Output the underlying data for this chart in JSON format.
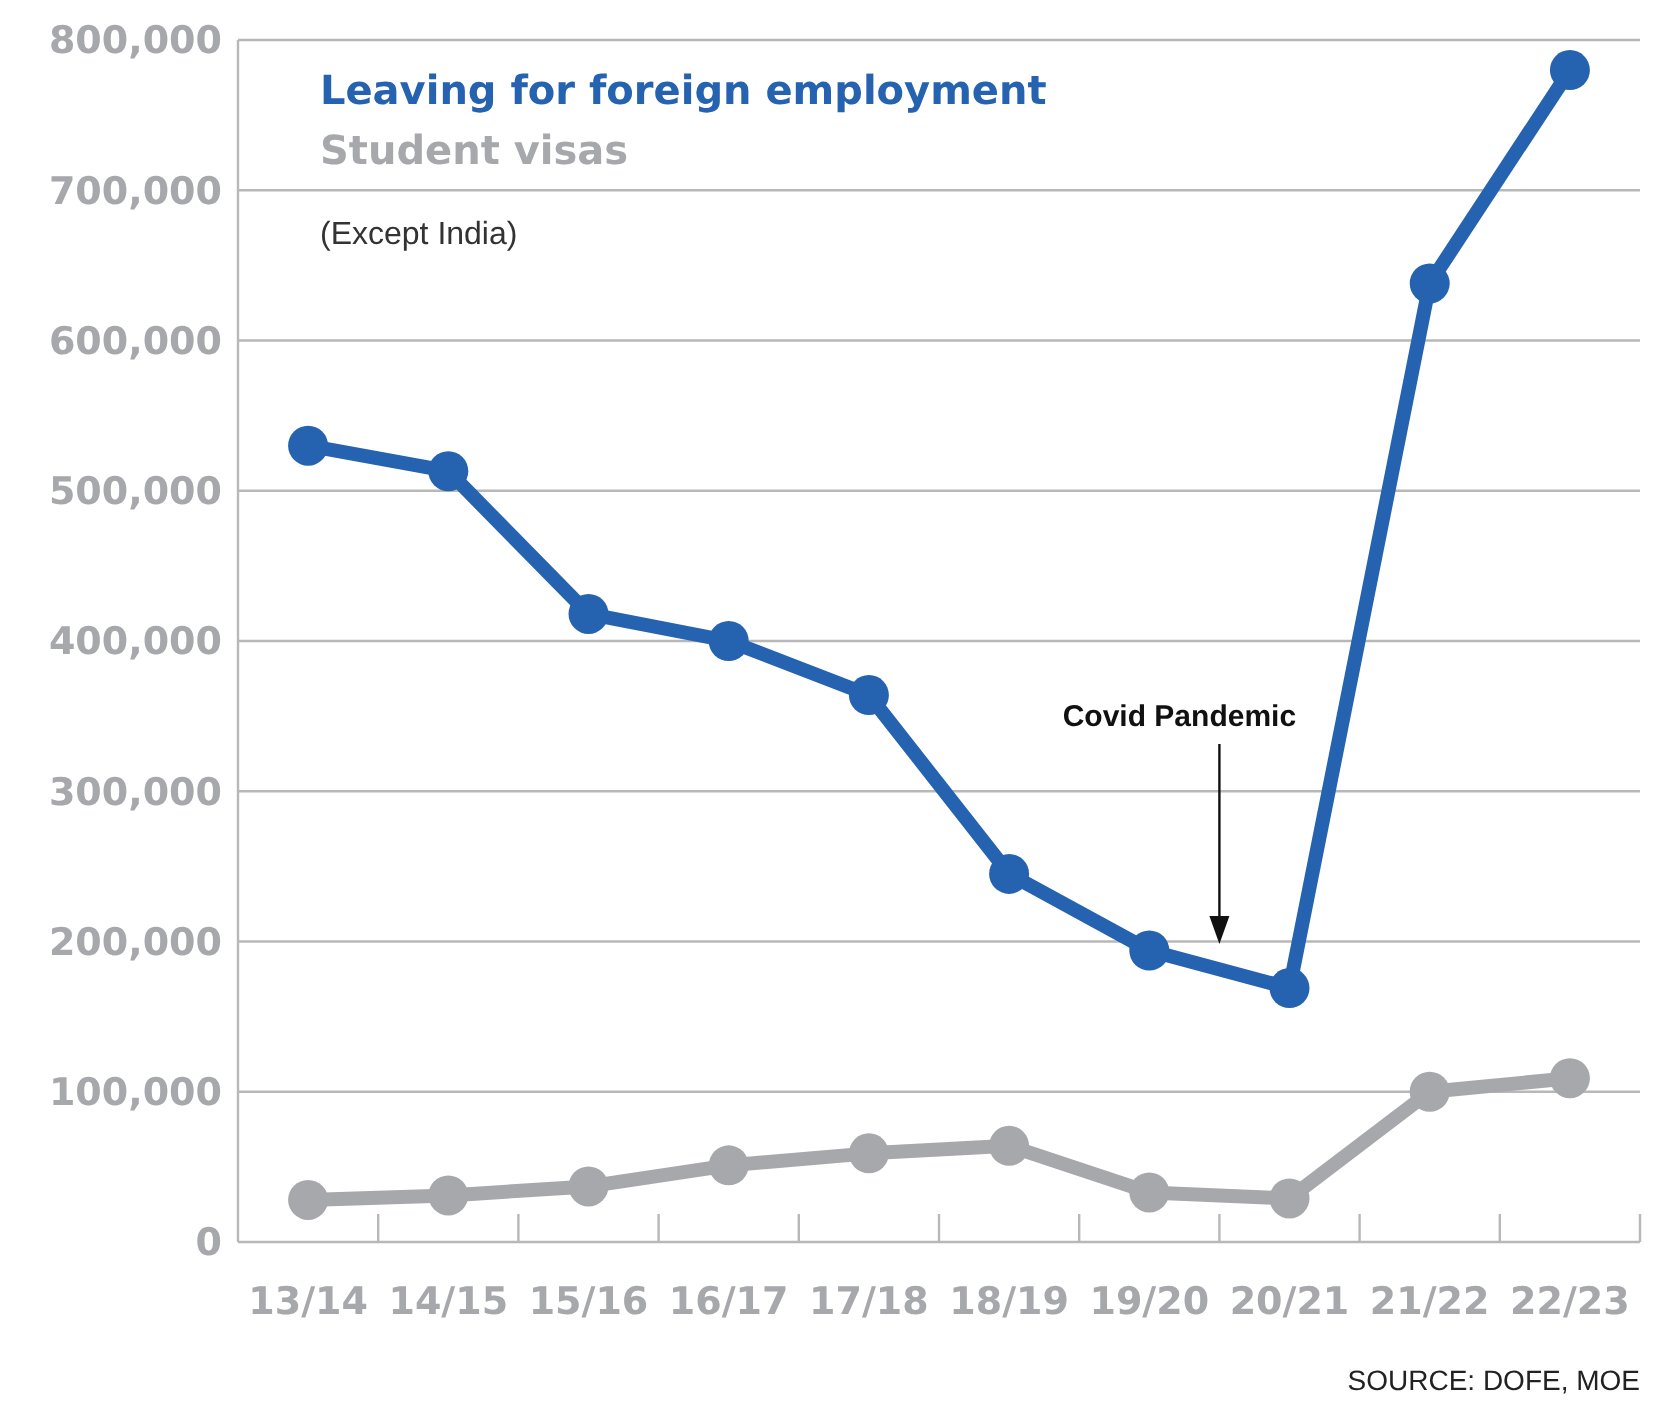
{
  "chart_data": {
    "type": "line",
    "subtitle": "(Except India)",
    "categories": [
      "13/14",
      "14/15",
      "15/16",
      "16/17",
      "17/18",
      "18/19",
      "19/20",
      "20/21",
      "21/22",
      "22/23"
    ],
    "series": [
      {
        "name": "Leaving for foreign employment",
        "color": "#2563b0",
        "values": [
          530000,
          513000,
          418000,
          400000,
          364000,
          245000,
          194000,
          169000,
          638000,
          780000
        ]
      },
      {
        "name": "Student visas",
        "color": "#a7a8ab",
        "values": [
          28000,
          31000,
          37000,
          51000,
          59000,
          64000,
          33000,
          29000,
          100000,
          109000
        ]
      }
    ],
    "ylim": [
      0,
      800000
    ],
    "yticks": [
      0,
      {
        "value": 100000,
        "label": "100,000"
      },
      {
        "value": 200000,
        "label": "200,000"
      },
      {
        "value": 300000,
        "label": "300,000"
      },
      {
        "value": 400000,
        "label": "400,000"
      },
      {
        "value": 500000,
        "label": "500,000"
      },
      {
        "value": 600000,
        "label": "600,000"
      },
      {
        "value": 700000,
        "label": "700,000"
      },
      {
        "value": 800000,
        "label": "800,000"
      }
    ],
    "annotations": [
      "Covid Pandemic",
      "SOURCE: DOFE, MOE"
    ],
    "grid": "y",
    "legend": "top left",
    "marker": "circle",
    "line_style": "solid"
  }
}
